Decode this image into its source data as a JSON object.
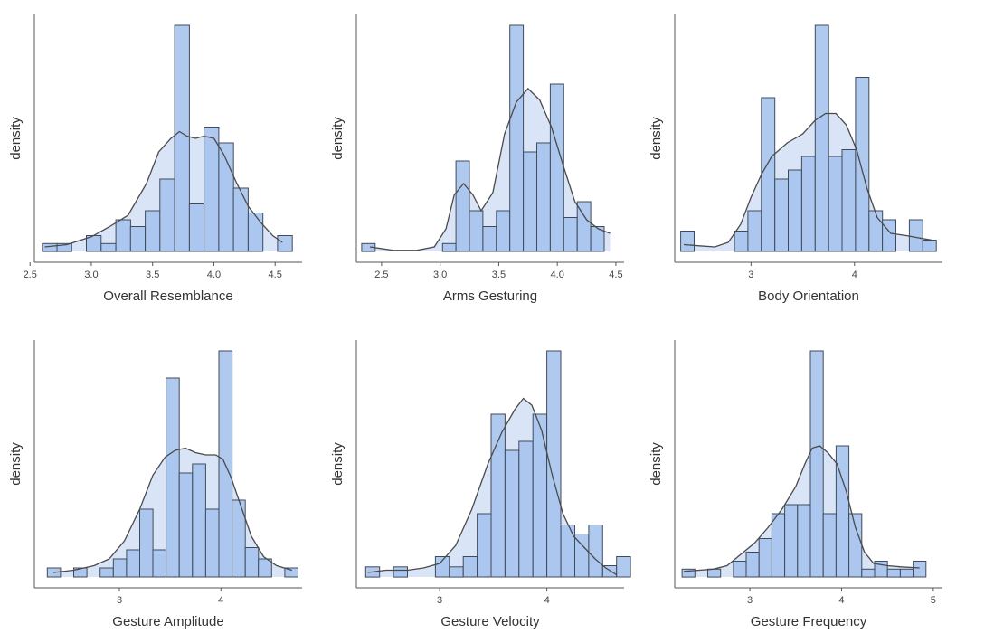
{
  "style": {
    "bar_fill": "#a8c4ee",
    "bar_stroke": "#404b5a",
    "kde_fill": "#d9e4f7",
    "kde_stroke": "#4a4a4a",
    "axis_color": "#555555"
  },
  "chart_data": [
    {
      "type": "histogram",
      "title": "",
      "xlabel": "Overall Resemblance",
      "ylabel": "density",
      "xlim": [
        2.55,
        4.72
      ],
      "ylim": [
        0,
        1.0
      ],
      "xticks": [
        2.5,
        3.0,
        3.5,
        4.0,
        4.5
      ],
      "xtick_labels": [
        "2.5",
        "3.0",
        "3.5",
        "4.0",
        "4.5"
      ],
      "bins": [
        [
          2.6,
          2.72,
          0.035
        ],
        [
          2.72,
          2.84,
          0.035
        ],
        [
          2.84,
          2.96,
          0.0
        ],
        [
          2.96,
          3.08,
          0.07
        ],
        [
          3.08,
          3.2,
          0.035
        ],
        [
          3.2,
          3.32,
          0.14
        ],
        [
          3.32,
          3.44,
          0.11
        ],
        [
          3.44,
          3.56,
          0.18
        ],
        [
          3.56,
          3.68,
          0.32
        ],
        [
          3.68,
          3.8,
          1.0
        ],
        [
          3.8,
          3.92,
          0.21
        ],
        [
          3.92,
          4.04,
          0.55
        ],
        [
          4.04,
          4.16,
          0.48
        ],
        [
          4.16,
          4.28,
          0.28
        ],
        [
          4.28,
          4.4,
          0.17
        ],
        [
          4.4,
          4.52,
          0.0
        ],
        [
          4.52,
          4.64,
          0.07
        ]
      ],
      "kde": [
        [
          2.62,
          0.02
        ],
        [
          2.8,
          0.03
        ],
        [
          3.0,
          0.065
        ],
        [
          3.15,
          0.11
        ],
        [
          3.3,
          0.16
        ],
        [
          3.45,
          0.3
        ],
        [
          3.55,
          0.44
        ],
        [
          3.65,
          0.5
        ],
        [
          3.72,
          0.53
        ],
        [
          3.78,
          0.51
        ],
        [
          3.85,
          0.5
        ],
        [
          3.92,
          0.51
        ],
        [
          4.0,
          0.5
        ],
        [
          4.08,
          0.43
        ],
        [
          4.18,
          0.31
        ],
        [
          4.28,
          0.2
        ],
        [
          4.38,
          0.13
        ],
        [
          4.48,
          0.07
        ],
        [
          4.56,
          0.04
        ]
      ]
    },
    {
      "type": "histogram",
      "title": "",
      "xlabel": "Arms Gesturing",
      "ylabel": "density",
      "xlim": [
        2.3,
        4.57
      ],
      "ylim": [
        0,
        1.0
      ],
      "xticks": [
        2.5,
        3.0,
        3.5,
        4.0,
        4.5
      ],
      "xtick_labels": [
        "2.5",
        "3.0",
        "3.5",
        "4.0",
        "4.5"
      ],
      "bins": [
        [
          2.33,
          2.445,
          0.035
        ],
        [
          2.445,
          2.56,
          0.0
        ],
        [
          2.56,
          2.675,
          0.0
        ],
        [
          2.675,
          2.79,
          0.0
        ],
        [
          2.79,
          2.905,
          0.0
        ],
        [
          2.905,
          3.02,
          0.0
        ],
        [
          3.02,
          3.135,
          0.035
        ],
        [
          3.135,
          3.25,
          0.4
        ],
        [
          3.25,
          3.365,
          0.18
        ],
        [
          3.365,
          3.48,
          0.11
        ],
        [
          3.48,
          3.595,
          0.18
        ],
        [
          3.595,
          3.71,
          1.0
        ],
        [
          3.71,
          3.825,
          0.44
        ],
        [
          3.825,
          3.94,
          0.48
        ],
        [
          3.94,
          4.055,
          0.74
        ],
        [
          4.055,
          4.17,
          0.15
        ],
        [
          4.17,
          4.285,
          0.22
        ],
        [
          4.285,
          4.4,
          0.11
        ]
      ],
      "kde": [
        [
          2.4,
          0.02
        ],
        [
          2.6,
          0.005
        ],
        [
          2.8,
          0.005
        ],
        [
          2.95,
          0.02
        ],
        [
          3.05,
          0.1
        ],
        [
          3.12,
          0.25
        ],
        [
          3.2,
          0.3
        ],
        [
          3.28,
          0.25
        ],
        [
          3.35,
          0.18
        ],
        [
          3.45,
          0.26
        ],
        [
          3.55,
          0.52
        ],
        [
          3.65,
          0.66
        ],
        [
          3.75,
          0.72
        ],
        [
          3.85,
          0.67
        ],
        [
          3.95,
          0.55
        ],
        [
          4.05,
          0.38
        ],
        [
          4.15,
          0.22
        ],
        [
          4.25,
          0.14
        ],
        [
          4.35,
          0.1
        ],
        [
          4.45,
          0.08
        ]
      ]
    },
    {
      "type": "histogram",
      "title": "",
      "xlabel": "Body Orientation",
      "ylabel": "density",
      "xlim": [
        2.28,
        4.85
      ],
      "ylim": [
        0,
        1.0
      ],
      "xticks": [
        3,
        4
      ],
      "xtick_labels": [
        "3",
        "4"
      ],
      "bins": [
        [
          2.32,
          2.45,
          0.09
        ],
        [
          2.45,
          2.58,
          0.0
        ],
        [
          2.58,
          2.71,
          0.0
        ],
        [
          2.71,
          2.84,
          0.0
        ],
        [
          2.84,
          2.97,
          0.09
        ],
        [
          2.97,
          3.1,
          0.18
        ],
        [
          3.1,
          3.23,
          0.68
        ],
        [
          3.23,
          3.36,
          0.32
        ],
        [
          3.36,
          3.49,
          0.36
        ],
        [
          3.49,
          3.62,
          0.42
        ],
        [
          3.62,
          3.75,
          1.0
        ],
        [
          3.75,
          3.88,
          0.42
        ],
        [
          3.88,
          4.01,
          0.45
        ],
        [
          4.01,
          4.14,
          0.77
        ],
        [
          4.14,
          4.27,
          0.18
        ],
        [
          4.27,
          4.4,
          0.14
        ],
        [
          4.4,
          4.53,
          0.0
        ],
        [
          4.53,
          4.66,
          0.14
        ],
        [
          4.66,
          4.79,
          0.05
        ]
      ],
      "kde": [
        [
          2.35,
          0.03
        ],
        [
          2.5,
          0.025
        ],
        [
          2.65,
          0.02
        ],
        [
          2.78,
          0.04
        ],
        [
          2.9,
          0.12
        ],
        [
          3.0,
          0.24
        ],
        [
          3.1,
          0.34
        ],
        [
          3.2,
          0.42
        ],
        [
          3.35,
          0.48
        ],
        [
          3.5,
          0.52
        ],
        [
          3.62,
          0.58
        ],
        [
          3.72,
          0.61
        ],
        [
          3.82,
          0.61
        ],
        [
          3.92,
          0.56
        ],
        [
          4.02,
          0.45
        ],
        [
          4.12,
          0.28
        ],
        [
          4.22,
          0.15
        ],
        [
          4.35,
          0.08
        ],
        [
          4.5,
          0.07
        ],
        [
          4.62,
          0.06
        ],
        [
          4.75,
          0.05
        ]
      ]
    },
    {
      "type": "histogram",
      "title": "",
      "xlabel": "Gesture Amplitude",
      "ylabel": "density",
      "xlim": [
        2.18,
        4.8
      ],
      "ylim": [
        0,
        1.0
      ],
      "xticks": [
        3,
        4
      ],
      "xtick_labels": [
        "3",
        "4"
      ],
      "bins": [
        [
          2.29,
          2.42,
          0.04
        ],
        [
          2.42,
          2.55,
          0.0
        ],
        [
          2.55,
          2.68,
          0.04
        ],
        [
          2.68,
          2.81,
          0.0
        ],
        [
          2.81,
          2.94,
          0.04
        ],
        [
          2.94,
          3.07,
          0.08
        ],
        [
          3.07,
          3.2,
          0.12
        ],
        [
          3.2,
          3.33,
          0.3
        ],
        [
          3.33,
          3.46,
          0.12
        ],
        [
          3.46,
          3.59,
          0.88
        ],
        [
          3.59,
          3.72,
          0.46
        ],
        [
          3.72,
          3.85,
          0.5
        ],
        [
          3.85,
          3.98,
          0.3
        ],
        [
          3.98,
          4.11,
          1.0
        ],
        [
          4.11,
          4.24,
          0.34
        ],
        [
          4.24,
          4.37,
          0.13
        ],
        [
          4.37,
          4.5,
          0.08
        ],
        [
          4.5,
          4.63,
          0.0
        ],
        [
          4.63,
          4.76,
          0.04
        ]
      ],
      "kde": [
        [
          2.35,
          0.02
        ],
        [
          2.55,
          0.03
        ],
        [
          2.75,
          0.05
        ],
        [
          2.9,
          0.08
        ],
        [
          3.05,
          0.16
        ],
        [
          3.2,
          0.3
        ],
        [
          3.33,
          0.45
        ],
        [
          3.45,
          0.53
        ],
        [
          3.55,
          0.56
        ],
        [
          3.65,
          0.57
        ],
        [
          3.75,
          0.55
        ],
        [
          3.85,
          0.54
        ],
        [
          3.95,
          0.54
        ],
        [
          4.02,
          0.52
        ],
        [
          4.1,
          0.44
        ],
        [
          4.2,
          0.31
        ],
        [
          4.3,
          0.18
        ],
        [
          4.42,
          0.09
        ],
        [
          4.55,
          0.05
        ],
        [
          4.7,
          0.03
        ]
      ]
    },
    {
      "type": "histogram",
      "title": "",
      "xlabel": "Gesture Velocity",
      "ylabel": "density",
      "xlim": [
        2.24,
        4.72
      ],
      "ylim": [
        0,
        1.0
      ],
      "xticks": [
        3,
        4
      ],
      "xtick_labels": [
        "3",
        "4"
      ],
      "bins": [
        [
          2.31,
          2.44,
          0.045
        ],
        [
          2.44,
          2.57,
          0.0
        ],
        [
          2.57,
          2.7,
          0.045
        ],
        [
          2.7,
          2.83,
          0.0
        ],
        [
          2.83,
          2.96,
          0.0
        ],
        [
          2.96,
          3.09,
          0.09
        ],
        [
          3.09,
          3.22,
          0.045
        ],
        [
          3.22,
          3.35,
          0.09
        ],
        [
          3.35,
          3.48,
          0.28
        ],
        [
          3.48,
          3.61,
          0.72
        ],
        [
          3.61,
          3.74,
          0.56
        ],
        [
          3.74,
          3.87,
          0.6
        ],
        [
          3.87,
          4.0,
          0.72
        ],
        [
          4.0,
          4.13,
          1.0
        ],
        [
          4.13,
          4.26,
          0.23
        ],
        [
          4.26,
          4.39,
          0.19
        ],
        [
          4.39,
          4.52,
          0.23
        ],
        [
          4.52,
          4.65,
          0.05
        ],
        [
          4.65,
          4.78,
          0.09
        ]
      ],
      "kde": [
        [
          2.33,
          0.02
        ],
        [
          2.5,
          0.03
        ],
        [
          2.7,
          0.03
        ],
        [
          2.85,
          0.04
        ],
        [
          3.0,
          0.06
        ],
        [
          3.15,
          0.14
        ],
        [
          3.3,
          0.3
        ],
        [
          3.45,
          0.5
        ],
        [
          3.58,
          0.64
        ],
        [
          3.7,
          0.74
        ],
        [
          3.78,
          0.79
        ],
        [
          3.86,
          0.76
        ],
        [
          3.95,
          0.65
        ],
        [
          4.05,
          0.45
        ],
        [
          4.15,
          0.28
        ],
        [
          4.25,
          0.18
        ],
        [
          4.35,
          0.13
        ],
        [
          4.45,
          0.08
        ],
        [
          4.55,
          0.04
        ],
        [
          4.65,
          0.01
        ]
      ]
    },
    {
      "type": "histogram",
      "title": "",
      "xlabel": "Gesture Frequency",
      "ylabel": "density",
      "xlim": [
        2.2,
        5.1
      ],
      "ylim": [
        0,
        1.0
      ],
      "xticks": [
        3,
        4,
        5
      ],
      "xtick_labels": [
        "3",
        "4",
        "5"
      ],
      "bins": [
        [
          2.26,
          2.4,
          0.035
        ],
        [
          2.4,
          2.54,
          0.0
        ],
        [
          2.54,
          2.68,
          0.035
        ],
        [
          2.68,
          2.82,
          0.0
        ],
        [
          2.82,
          2.96,
          0.07
        ],
        [
          2.96,
          3.1,
          0.11
        ],
        [
          3.1,
          3.24,
          0.17
        ],
        [
          3.24,
          3.38,
          0.28
        ],
        [
          3.38,
          3.52,
          0.32
        ],
        [
          3.52,
          3.66,
          0.32
        ],
        [
          3.66,
          3.8,
          1.0
        ],
        [
          3.8,
          3.94,
          0.28
        ],
        [
          3.94,
          4.08,
          0.58
        ],
        [
          4.08,
          4.22,
          0.28
        ],
        [
          4.22,
          4.36,
          0.035
        ],
        [
          4.36,
          4.5,
          0.07
        ],
        [
          4.5,
          4.64,
          0.035
        ],
        [
          4.64,
          4.78,
          0.035
        ],
        [
          4.78,
          4.92,
          0.07
        ]
      ],
      "kde": [
        [
          2.28,
          0.025
        ],
        [
          2.45,
          0.03
        ],
        [
          2.6,
          0.035
        ],
        [
          2.75,
          0.05
        ],
        [
          2.9,
          0.1
        ],
        [
          3.05,
          0.15
        ],
        [
          3.2,
          0.22
        ],
        [
          3.35,
          0.3
        ],
        [
          3.5,
          0.4
        ],
        [
          3.6,
          0.5
        ],
        [
          3.68,
          0.57
        ],
        [
          3.76,
          0.58
        ],
        [
          3.85,
          0.55
        ],
        [
          3.95,
          0.5
        ],
        [
          4.05,
          0.38
        ],
        [
          4.15,
          0.22
        ],
        [
          4.25,
          0.11
        ],
        [
          4.35,
          0.06
        ],
        [
          4.5,
          0.05
        ],
        [
          4.65,
          0.045
        ],
        [
          4.85,
          0.04
        ]
      ]
    }
  ]
}
